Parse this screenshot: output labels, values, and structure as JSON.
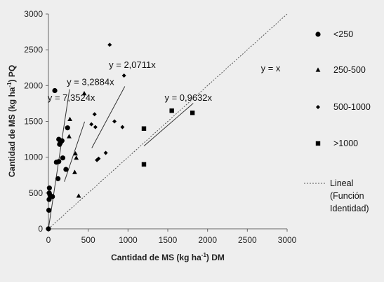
{
  "chart_data": {
    "type": "scatter",
    "xlabel_main": "Cantidad de MS (kg ha",
    "xlabel_sup": "-1",
    "xlabel_tail": ") DM",
    "ylabel_main": "Cantidad de MS (kg ha",
    "ylabel_sup": "-1",
    "ylabel_tail": ") PQ",
    "xlim": [
      0,
      3000
    ],
    "ylim": [
      0,
      3000
    ],
    "xticks": [
      0,
      500,
      1000,
      1500,
      2000,
      2500,
      3000
    ],
    "yticks": [
      0,
      500,
      1000,
      1500,
      2000,
      2500,
      3000
    ],
    "grid": false,
    "legend_position": "right",
    "series": [
      {
        "name": "<250",
        "marker": "circle",
        "points": [
          [
            0,
            0
          ],
          [
            5,
            260
          ],
          [
            8,
            410
          ],
          [
            10,
            500
          ],
          [
            12,
            570
          ],
          [
            20,
            470
          ],
          [
            50,
            450
          ],
          [
            80,
            1930
          ],
          [
            100,
            930
          ],
          [
            120,
            700
          ],
          [
            130,
            940
          ],
          [
            130,
            1250
          ],
          [
            140,
            1180
          ],
          [
            150,
            1200
          ],
          [
            170,
            1230
          ],
          [
            180,
            990
          ],
          [
            220,
            830
          ],
          [
            240,
            1410
          ]
        ]
      },
      {
        "name": "250-500",
        "marker": "triangle",
        "points": [
          [
            260,
            1290
          ],
          [
            270,
            1530
          ],
          [
            330,
            790
          ],
          [
            340,
            1050
          ],
          [
            350,
            990
          ],
          [
            380,
            460
          ],
          [
            450,
            1890
          ]
        ]
      },
      {
        "name": "500-1000",
        "marker": "diamond",
        "points": [
          [
            540,
            1460
          ],
          [
            580,
            1600
          ],
          [
            590,
            1420
          ],
          [
            610,
            960
          ],
          [
            630,
            980
          ],
          [
            720,
            1060
          ],
          [
            770,
            2570
          ],
          [
            830,
            1500
          ],
          [
            930,
            1420
          ],
          [
            950,
            2140
          ]
        ]
      },
      {
        "name": ">1000",
        "marker": "square",
        "points": [
          [
            1200,
            1400
          ],
          [
            1200,
            900
          ],
          [
            1550,
            1650
          ],
          [
            1810,
            1620
          ]
        ]
      }
    ],
    "identity_line": {
      "name_line1": "Lineal",
      "name_line2": "(Función",
      "name_line3": "Identidad)",
      "label": "y = x"
    },
    "trendlines": [
      {
        "label": "y = 7,3524x",
        "slope": 7.3524,
        "x_range": [
          0,
          265
        ]
      },
      {
        "label": "y = 3,2884x",
        "slope": 3.2884,
        "x_range": [
          200,
          455
        ]
      },
      {
        "label": "y = 2,0711x",
        "slope": 2.0711,
        "x_range": [
          545,
          960
        ]
      },
      {
        "label": "y = 0,9632x",
        "slope": 0.9632,
        "x_range": [
          1200,
          1820
        ]
      }
    ]
  },
  "colors": {
    "marker": "#000000",
    "trendline": "#333333",
    "identity": "#555555",
    "axis": "#666666",
    "background": "#eeeeee"
  }
}
